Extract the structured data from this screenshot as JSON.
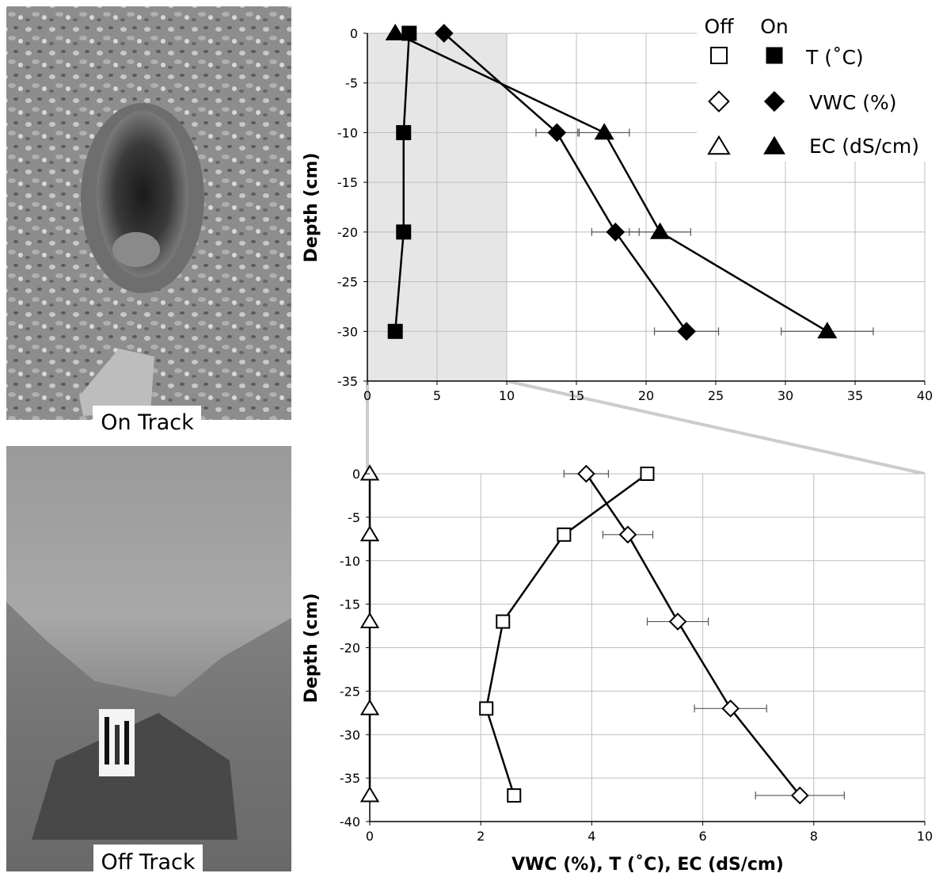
{
  "photos": {
    "top_label": "On Track",
    "bottom_label": "Off Track"
  },
  "legend": {
    "col_off": "Off",
    "col_on": "On",
    "rows": [
      {
        "label": "T (˚C)",
        "marker": "square"
      },
      {
        "label": "VWC (%)",
        "marker": "diamond"
      },
      {
        "label": "EC (dS/cm)",
        "marker": "triangle"
      }
    ]
  },
  "colors": {
    "highlight": "#e6e6e6",
    "grid": "#bdbdbd",
    "ink": "#000000"
  },
  "chart_data": [
    {
      "type": "line",
      "panel": "On Track",
      "xlabel": "",
      "ylabel": "Depth (cm)",
      "xlim": [
        0,
        40
      ],
      "ylim": [
        -35,
        0
      ],
      "xticks": [
        "0",
        "5",
        "10",
        "15",
        "20",
        "25",
        "30",
        "35",
        "40"
      ],
      "yticks": [
        "0",
        "-5",
        "-10",
        "-15",
        "-20",
        "-25",
        "-30",
        "-35"
      ],
      "highlight_x": [
        0,
        10
      ],
      "grid": true,
      "series": [
        {
          "name": "T (˚C)",
          "marker": "square",
          "fill": "filled",
          "x": [
            3.0,
            2.6,
            2.6,
            2.0
          ],
          "y": [
            0,
            -10,
            -20,
            -30
          ],
          "err": [
            0,
            0,
            0,
            0
          ]
        },
        {
          "name": "VWC (%)",
          "marker": "diamond",
          "fill": "filled",
          "x": [
            5.5,
            13.6,
            17.8,
            22.9
          ],
          "y": [
            0,
            -10,
            -20,
            -30
          ],
          "err": [
            0,
            1.5,
            1.7,
            2.3
          ]
        },
        {
          "name": "EC (dS/cm)",
          "marker": "triangle",
          "fill": "filled",
          "x": [
            2.0,
            17.0,
            21.0,
            33.0
          ],
          "y": [
            0,
            -10,
            -20,
            -30
          ],
          "err": [
            0,
            1.8,
            2.2,
            3.3
          ]
        }
      ]
    },
    {
      "type": "line",
      "panel": "Off Track",
      "xlabel": "VWC (%), T (˚C), EC (dS/cm)",
      "ylabel": "Depth (cm)",
      "xlim": [
        0,
        10
      ],
      "ylim": [
        -40,
        0
      ],
      "xticks": [
        "0",
        "2",
        "4",
        "6",
        "8",
        "10"
      ],
      "yticks": [
        "0",
        "-5",
        "-10",
        "-15",
        "-20",
        "-25",
        "-30",
        "-35",
        "-40"
      ],
      "grid": true,
      "series": [
        {
          "name": "T (˚C)",
          "marker": "square",
          "fill": "open",
          "x": [
            5.0,
            3.5,
            2.4,
            2.1,
            2.6
          ],
          "y": [
            0,
            -7,
            -17,
            -27,
            -37
          ],
          "err": [
            0,
            0,
            0,
            0,
            0
          ]
        },
        {
          "name": "VWC (%)",
          "marker": "diamond",
          "fill": "open",
          "x": [
            3.9,
            4.65,
            5.55,
            6.5,
            7.75
          ],
          "y": [
            0,
            -7,
            -17,
            -27,
            -37
          ],
          "err": [
            0.4,
            0.45,
            0.55,
            0.65,
            0.8
          ]
        },
        {
          "name": "EC (dS/cm)",
          "marker": "triangle",
          "fill": "open",
          "x": [
            0,
            0,
            0,
            0,
            0
          ],
          "y": [
            0,
            -7,
            -17,
            -27,
            -37
          ],
          "err": [
            0,
            0,
            0,
            0,
            0
          ]
        }
      ]
    }
  ]
}
